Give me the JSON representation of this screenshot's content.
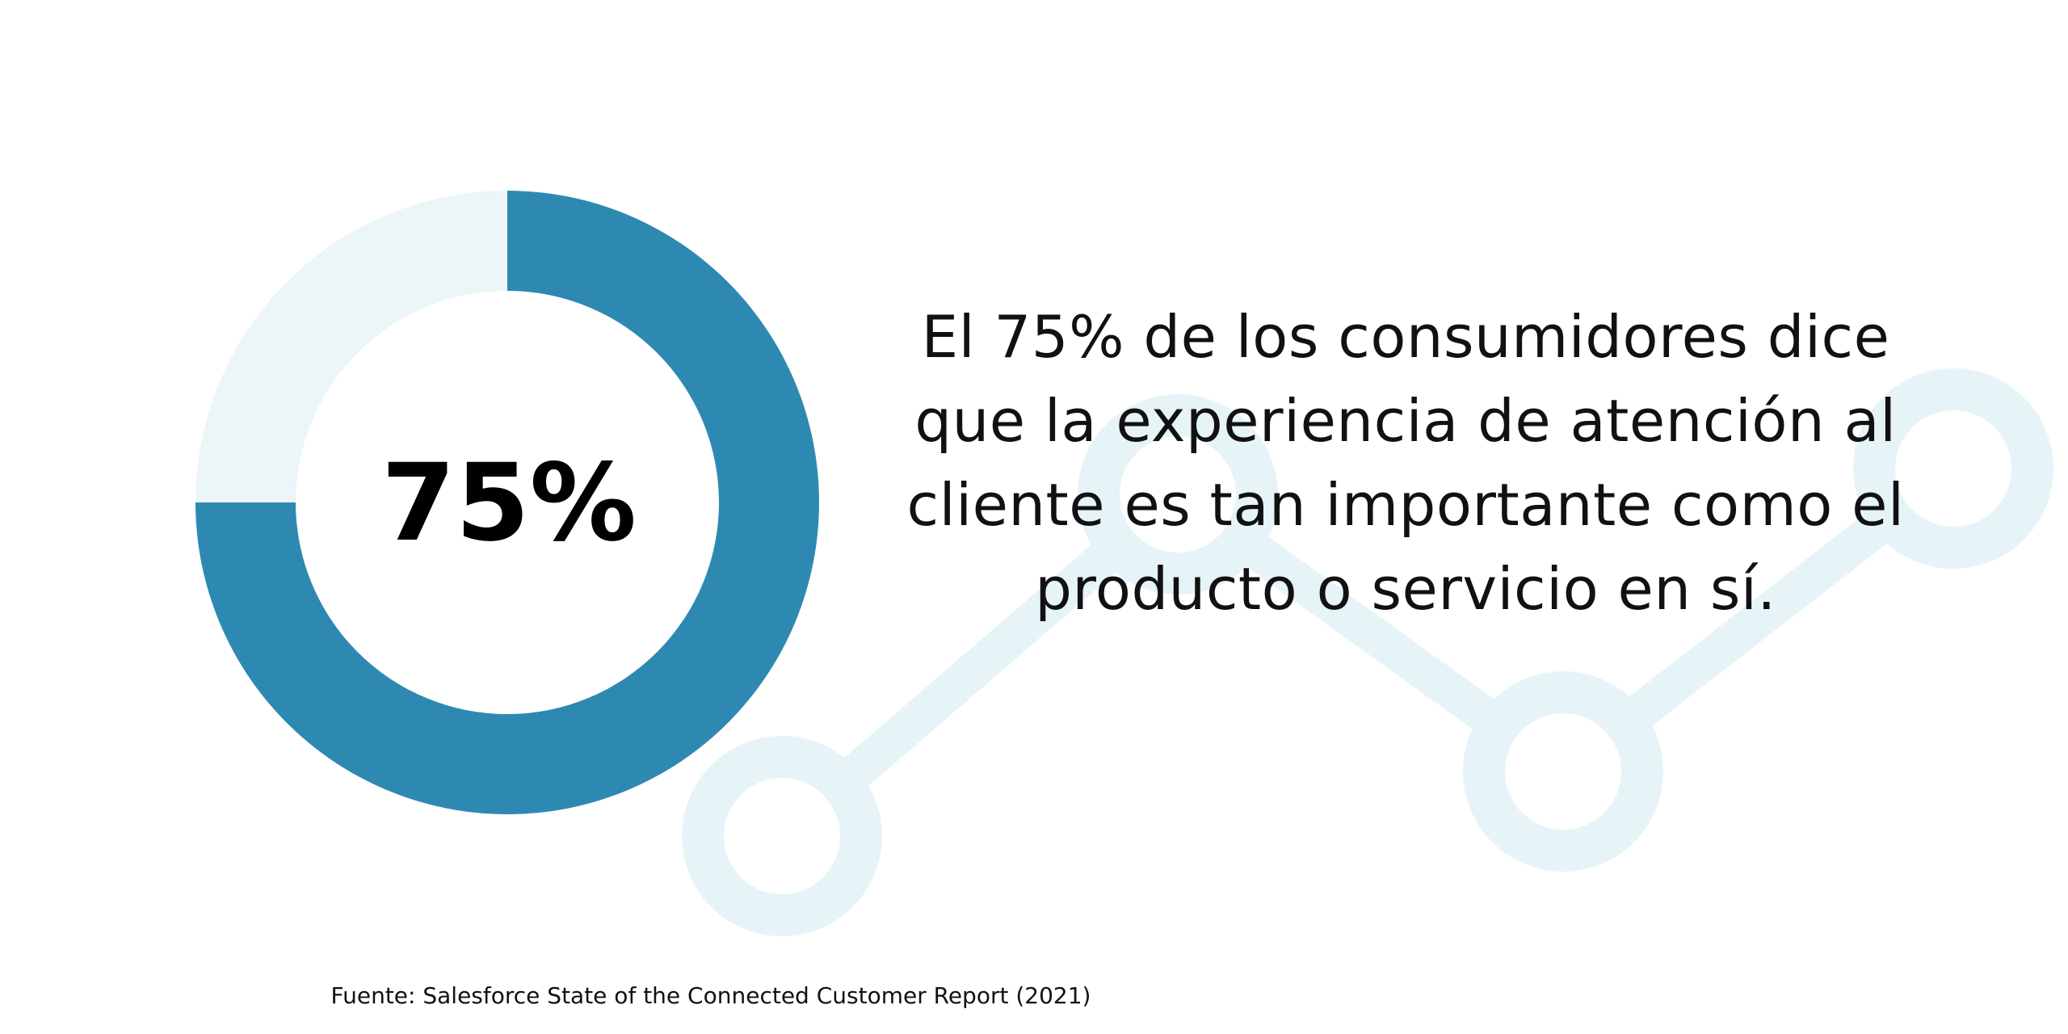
{
  "chart_data": {
    "type": "pie",
    "title": "",
    "slices": [
      {
        "label": "",
        "value": 75,
        "color": "#2e89b2"
      },
      {
        "label": "",
        "value": 25,
        "color": "#ecf5f7"
      }
    ],
    "center_label": "75%"
  },
  "headline": {
    "lines": [
      "El 75% de los consumidores dice",
      "que la experiencia de atención al",
      "cliente es tan importante como el",
      "producto o servicio en sí."
    ]
  },
  "source": "Fuente: Salesforce State of the Connected Customer Report (2021)",
  "colors": {
    "accent": "#2e89b2",
    "track": "#ecf5f7",
    "decor": "#e6f4f8",
    "text": "#111111"
  },
  "decor_icon": "line-graph-icon"
}
